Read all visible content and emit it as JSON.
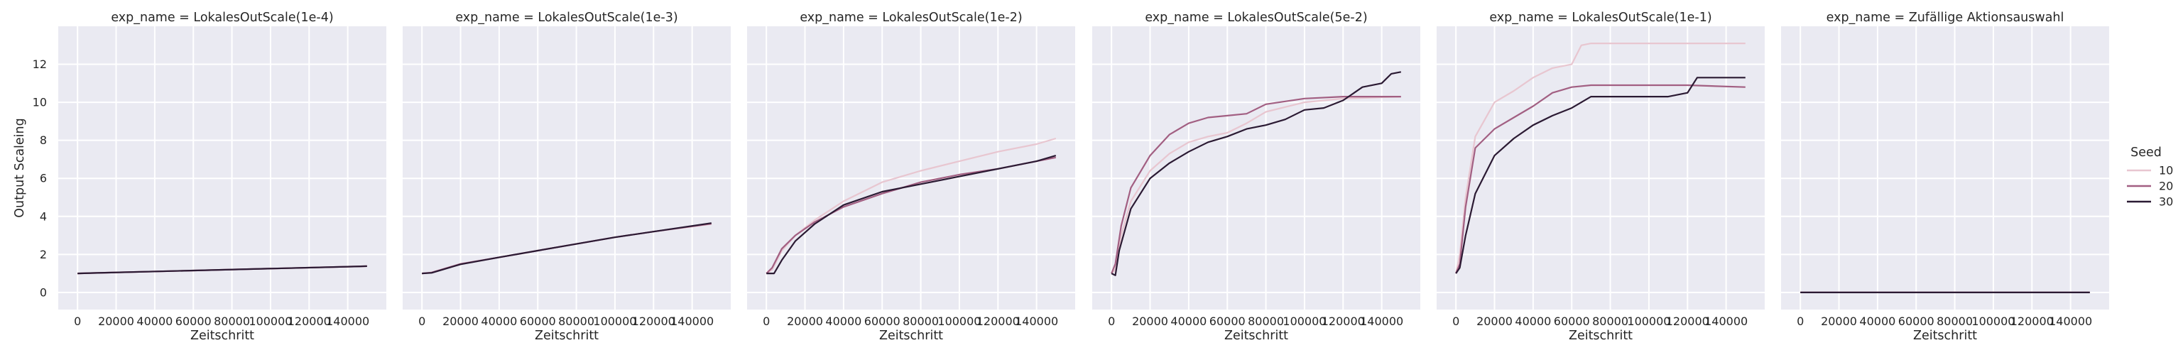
{
  "chart_data": {
    "type": "line",
    "shared": {
      "xlabel": "Zeitschritt",
      "ylabel": "Output Scaleing",
      "xlim": [
        -10000,
        160000
      ],
      "ylim": [
        -0.9,
        14
      ],
      "xticks": [
        0,
        20000,
        40000,
        60000,
        80000,
        100000,
        120000,
        140000
      ],
      "xtick_labels": [
        "0",
        "20000",
        "40000",
        "60000",
        "80000",
        "100000",
        "120000",
        "140000"
      ],
      "yticks": [
        0,
        2,
        4,
        6,
        8,
        10,
        12
      ],
      "ytick_labels": [
        "0",
        "2",
        "4",
        "6",
        "8",
        "10",
        "12"
      ],
      "grid": true,
      "sharey": true
    },
    "legend": {
      "title": "Seed",
      "placement": "right",
      "entries": [
        {
          "label": "10",
          "color": "#e8c6d0"
        },
        {
          "label": "20",
          "color": "#a25f82"
        },
        {
          "label": "30",
          "color": "#2b1a33"
        }
      ]
    },
    "panels": [
      {
        "title": "exp_name = LokalesOutScale(1e-4)",
        "series": [
          {
            "name": "10",
            "x": [
              0,
              150000
            ],
            "y": [
              1.0,
              1.38
            ]
          },
          {
            "name": "20",
            "x": [
              0,
              150000
            ],
            "y": [
              1.0,
              1.38
            ]
          },
          {
            "name": "30",
            "x": [
              0,
              150000
            ],
            "y": [
              1.0,
              1.38
            ]
          }
        ]
      },
      {
        "title": "exp_name = LokalesOutScale(1e-3)",
        "series": [
          {
            "name": "10",
            "x": [
              0,
              5000,
              10000,
              20000,
              40000,
              60000,
              80000,
              100000,
              120000,
              150000
            ],
            "y": [
              1.0,
              1.05,
              1.2,
              1.5,
              1.85,
              2.2,
              2.55,
              2.9,
              3.2,
              3.6
            ]
          },
          {
            "name": "20",
            "x": [
              0,
              5000,
              10000,
              20000,
              40000,
              60000,
              80000,
              100000,
              120000,
              150000
            ],
            "y": [
              1.0,
              1.05,
              1.2,
              1.5,
              1.85,
              2.2,
              2.55,
              2.9,
              3.2,
              3.62
            ]
          },
          {
            "name": "30",
            "x": [
              0,
              5000,
              10000,
              20000,
              40000,
              60000,
              80000,
              100000,
              120000,
              150000
            ],
            "y": [
              1.0,
              1.03,
              1.18,
              1.48,
              1.85,
              2.2,
              2.55,
              2.9,
              3.2,
              3.65
            ]
          }
        ]
      },
      {
        "title": "exp_name = LokalesOutScale(1e-2)",
        "series": [
          {
            "name": "10",
            "x": [
              0,
              3000,
              8000,
              15000,
              25000,
              40000,
              60000,
              80000,
              100000,
              120000,
              140000,
              150000
            ],
            "y": [
              1.0,
              1.2,
              2.2,
              3.0,
              3.8,
              4.8,
              5.8,
              6.4,
              6.9,
              7.4,
              7.8,
              8.1
            ]
          },
          {
            "name": "20",
            "x": [
              0,
              3000,
              8000,
              15000,
              25000,
              40000,
              60000,
              80000,
              100000,
              120000,
              140000,
              150000
            ],
            "y": [
              1.0,
              1.3,
              2.3,
              3.0,
              3.7,
              4.5,
              5.2,
              5.8,
              6.2,
              6.5,
              6.9,
              7.1
            ]
          },
          {
            "name": "30",
            "x": [
              0,
              4000,
              8000,
              15000,
              25000,
              40000,
              60000,
              80000,
              100000,
              120000,
              140000,
              150000
            ],
            "y": [
              1.0,
              1.0,
              1.7,
              2.7,
              3.6,
              4.6,
              5.3,
              5.7,
              6.1,
              6.5,
              6.9,
              7.2
            ]
          }
        ]
      },
      {
        "title": "exp_name = LokalesOutScale(5e-2)",
        "series": [
          {
            "name": "10",
            "x": [
              0,
              2000,
              5000,
              10000,
              20000,
              30000,
              40000,
              50000,
              60000,
              70000,
              80000,
              100000,
              120000,
              150000
            ],
            "y": [
              1.0,
              1.2,
              3.0,
              4.8,
              6.4,
              7.3,
              7.9,
              8.2,
              8.4,
              8.9,
              9.5,
              10.0,
              10.2,
              10.3
            ]
          },
          {
            "name": "20",
            "x": [
              0,
              2000,
              5000,
              10000,
              20000,
              30000,
              40000,
              50000,
              60000,
              70000,
              80000,
              100000,
              120000,
              150000
            ],
            "y": [
              1.0,
              1.5,
              3.5,
              5.5,
              7.2,
              8.3,
              8.9,
              9.2,
              9.3,
              9.4,
              9.9,
              10.2,
              10.3,
              10.3
            ]
          },
          {
            "name": "30",
            "x": [
              0,
              2000,
              4000,
              10000,
              20000,
              30000,
              40000,
              50000,
              60000,
              70000,
              80000,
              90000,
              100000,
              110000,
              120000,
              130000,
              140000,
              145000,
              150000
            ],
            "y": [
              1.0,
              0.9,
              2.2,
              4.4,
              6.0,
              6.8,
              7.4,
              7.9,
              8.2,
              8.6,
              8.8,
              9.1,
              9.6,
              9.7,
              10.1,
              10.8,
              11.0,
              11.5,
              11.6
            ]
          }
        ]
      },
      {
        "title": "exp_name = LokalesOutScale(1e-1)",
        "series": [
          {
            "name": "10",
            "x": [
              0,
              2000,
              5000,
              10000,
              20000,
              30000,
              40000,
              50000,
              60000,
              65000,
              70000,
              80000,
              100000,
              120000,
              150000
            ],
            "y": [
              1.0,
              2.0,
              5.0,
              8.2,
              10.0,
              10.6,
              11.3,
              11.8,
              12.0,
              13.0,
              13.1,
              13.1,
              13.1,
              13.1,
              13.1
            ]
          },
          {
            "name": "20",
            "x": [
              0,
              2000,
              5000,
              10000,
              20000,
              30000,
              40000,
              50000,
              60000,
              70000,
              80000,
              100000,
              120000,
              150000
            ],
            "y": [
              1.0,
              1.5,
              4.5,
              7.6,
              8.6,
              9.2,
              9.8,
              10.5,
              10.8,
              10.9,
              10.9,
              10.9,
              10.9,
              10.8
            ]
          },
          {
            "name": "30",
            "x": [
              0,
              2000,
              5000,
              10000,
              20000,
              30000,
              40000,
              50000,
              60000,
              70000,
              80000,
              100000,
              110000,
              120000,
              125000,
              150000
            ],
            "y": [
              1.0,
              1.3,
              3.0,
              5.2,
              7.2,
              8.1,
              8.8,
              9.3,
              9.7,
              10.3,
              10.3,
              10.3,
              10.3,
              10.5,
              11.3,
              11.3
            ]
          }
        ]
      },
      {
        "title": "exp_name = Zufällige Aktionsauswahl",
        "series": [
          {
            "name": "10",
            "x": [
              0,
              150000
            ],
            "y": [
              0.0,
              0.0
            ]
          },
          {
            "name": "20",
            "x": [
              0,
              150000
            ],
            "y": [
              0.0,
              0.0
            ]
          },
          {
            "name": "30",
            "x": [
              0,
              150000
            ],
            "y": [
              0.0,
              0.0
            ]
          }
        ]
      }
    ]
  }
}
